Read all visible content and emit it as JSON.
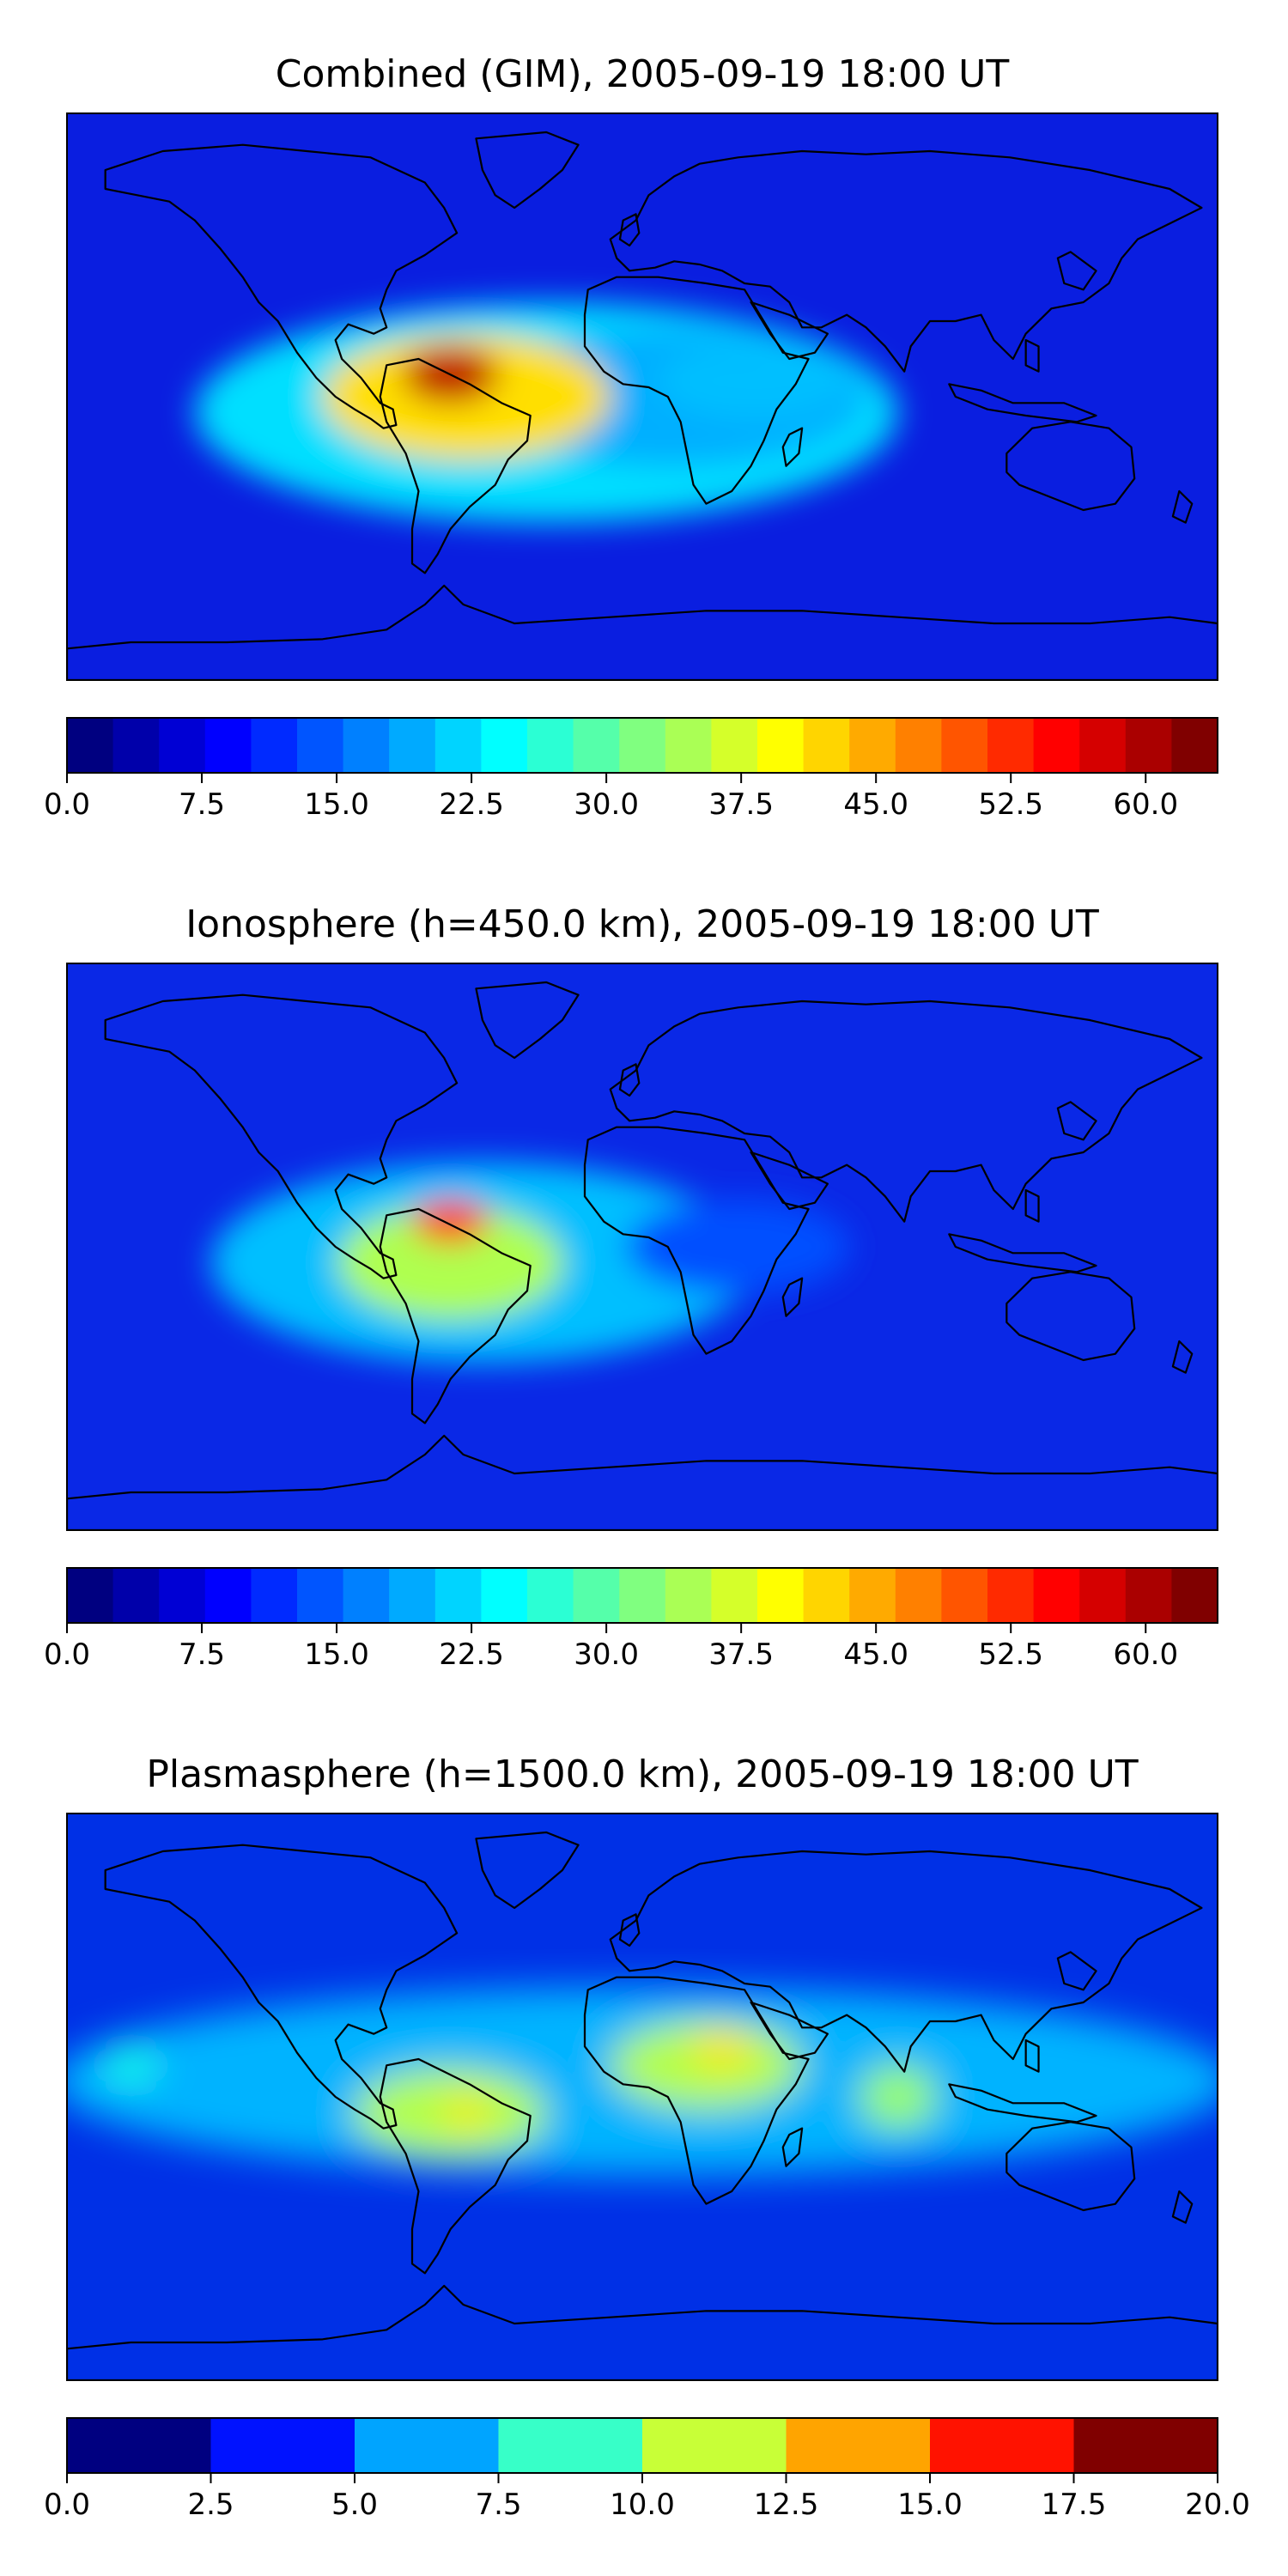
{
  "figure": {
    "background": "#ffffff",
    "coastline_color": "#000000",
    "frame_color": "#000000"
  },
  "panels": [
    {
      "key": "combined",
      "title": "Combined (GIM), 2005-09-19 18:00 UT",
      "colormap": "jet",
      "map_background": "#0a1ee0",
      "colorbar": {
        "vmin": 0,
        "vmax": 64,
        "levels": 25,
        "tick_labels": [
          "0.0",
          "7.5",
          "15.0",
          "22.5",
          "30.0",
          "37.5",
          "45.0",
          "52.5",
          "60.0"
        ],
        "tick_values": [
          0,
          7.5,
          15,
          22.5,
          30,
          37.5,
          45,
          52.5,
          60
        ]
      },
      "field_features": [
        {
          "name": "equatorial-band",
          "lon": -30,
          "lat": -5,
          "rlon": 110,
          "rlat": 35,
          "value": 22
        },
        {
          "name": "atlantic-extension",
          "lon": 10,
          "lat": 0,
          "rlon": 60,
          "rlat": 22,
          "value": 19
        },
        {
          "name": "africa-band",
          "lon": 35,
          "lat": 5,
          "rlon": 30,
          "rlat": 12,
          "value": 20
        },
        {
          "name": "south-america-high",
          "lon": -55,
          "lat": 0,
          "rlon": 45,
          "rlat": 20,
          "value": 42
        },
        {
          "name": "south-america-peak",
          "lon": -60,
          "lat": 7,
          "rlon": 15,
          "rlat": 9,
          "value": 60
        }
      ]
    },
    {
      "key": "ionosphere",
      "title": "Ionosphere  (h=450.0 km), 2005-09-19 18:00 UT",
      "colormap": "jet",
      "map_background": "#0a28e6",
      "colorbar": {
        "vmin": 0,
        "vmax": 64,
        "levels": 25,
        "tick_labels": [
          "0.0",
          "7.5",
          "15.0",
          "22.5",
          "30.0",
          "37.5",
          "45.0",
          "52.5",
          "60.0"
        ],
        "tick_values": [
          0,
          7.5,
          15,
          22.5,
          30,
          37.5,
          45,
          52.5,
          60
        ]
      },
      "field_features": [
        {
          "name": "equatorial-band",
          "lon": -50,
          "lat": -5,
          "rlon": 85,
          "rlat": 32,
          "value": 20
        },
        {
          "name": "south-america-high",
          "lon": -60,
          "lat": -5,
          "rlon": 35,
          "rlat": 18,
          "value": 35
        },
        {
          "name": "south-america-peak",
          "lon": -60,
          "lat": 8,
          "rlon": 12,
          "rlat": 7,
          "value": 52
        },
        {
          "name": "africa-band",
          "lon": 30,
          "lat": 0,
          "rlon": 35,
          "rlat": 15,
          "value": 13
        }
      ]
    },
    {
      "key": "plasmasphere",
      "title": "Plasmasphere (h=1500.0 km), 2005-09-19 18:00 UT",
      "colormap": "jet",
      "map_background": "#0030e6",
      "colorbar": {
        "vmin": 0,
        "vmax": 20,
        "levels": 8,
        "tick_labels": [
          "0.0",
          "2.5",
          "5.0",
          "7.5",
          "10.0",
          "12.5",
          "15.0",
          "17.5",
          "20.0"
        ],
        "tick_values": [
          0,
          2.5,
          5,
          7.5,
          10,
          12.5,
          15,
          17.5,
          20
        ]
      },
      "field_features": [
        {
          "name": "tropical-belt",
          "lon": 0,
          "lat": 5,
          "rlon": 185,
          "rlat": 30,
          "value": 6
        },
        {
          "name": "south-america-high",
          "lon": -60,
          "lat": -5,
          "rlon": 30,
          "rlat": 14,
          "value": 11
        },
        {
          "name": "south-america-peak",
          "lon": -55,
          "lat": -5,
          "rlon": 7,
          "rlat": 5,
          "value": 13
        },
        {
          "name": "africa-high",
          "lon": 20,
          "lat": 10,
          "rlon": 30,
          "rlat": 14,
          "value": 11
        },
        {
          "name": "africa-peak",
          "lon": 25,
          "lat": 15,
          "rlon": 10,
          "rlat": 6,
          "value": 13
        },
        {
          "name": "indian-ocean-high",
          "lon": 80,
          "lat": 0,
          "rlon": 12,
          "rlat": 10,
          "value": 10.5
        },
        {
          "name": "pacific-blob",
          "lon": -160,
          "lat": 10,
          "rlon": 8,
          "rlat": 6,
          "value": 8
        }
      ]
    }
  ]
}
